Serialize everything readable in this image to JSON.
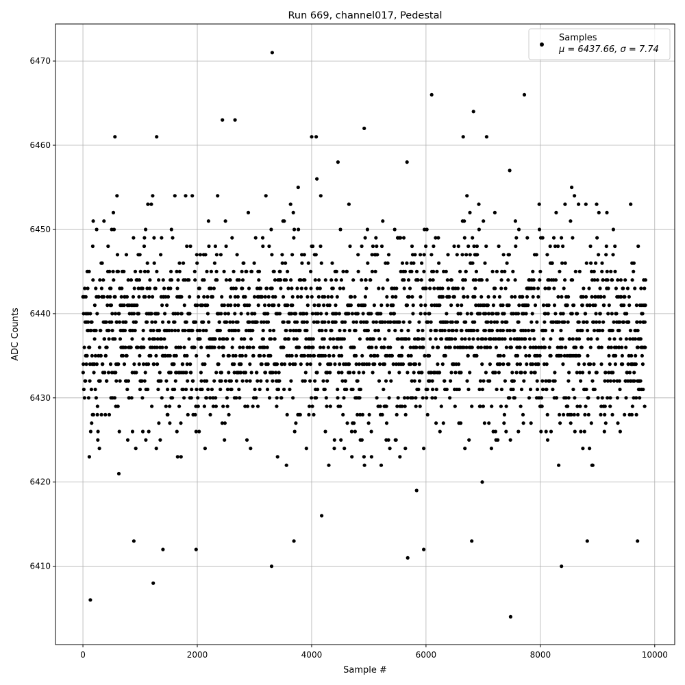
{
  "chart_data": {
    "type": "scatter",
    "title": "Run 669, channel017, Pedestal",
    "xlabel": "Sample #",
    "ylabel": "ADC Counts",
    "xlim": [
      -480,
      10350
    ],
    "ylim": [
      6400.7,
      6474.4
    ],
    "xticks": [
      0,
      2000,
      4000,
      6000,
      8000,
      10000
    ],
    "yticks": [
      6410,
      6420,
      6430,
      6440,
      6450,
      6460,
      6470
    ],
    "grid": true,
    "legend": {
      "placement": "top-right",
      "entries": [
        {
          "label": "Samples",
          "stats": "μ = 6437.66, σ = 7.74"
        }
      ]
    },
    "series": [
      {
        "name": "Samples",
        "color": "#000000",
        "marker": "circle",
        "mean": 6437.66,
        "sigma": 7.74,
        "x_range": [
          0,
          9840
        ],
        "notable_points": [
          {
            "x": 130,
            "y": 6406
          },
          {
            "x": 1230,
            "y": 6408
          },
          {
            "x": 3300,
            "y": 6410
          },
          {
            "x": 7480,
            "y": 6404
          },
          {
            "x": 8370,
            "y": 6410
          },
          {
            "x": 3310,
            "y": 6471
          },
          {
            "x": 6100,
            "y": 6466
          },
          {
            "x": 7720,
            "y": 6466
          },
          {
            "x": 6830,
            "y": 6464
          },
          {
            "x": 2440,
            "y": 6463
          },
          {
            "x": 2660,
            "y": 6463
          },
          {
            "x": 4920,
            "y": 6462
          },
          {
            "x": 560,
            "y": 6461
          },
          {
            "x": 1290,
            "y": 6461
          },
          {
            "x": 4000,
            "y": 6461
          },
          {
            "x": 4080,
            "y": 6461
          },
          {
            "x": 6650,
            "y": 6461
          },
          {
            "x": 7060,
            "y": 6461
          },
          {
            "x": 5960,
            "y": 6412
          },
          {
            "x": 1980,
            "y": 6412
          },
          {
            "x": 1400,
            "y": 6412
          },
          {
            "x": 5680,
            "y": 6411
          },
          {
            "x": 890,
            "y": 6413
          },
          {
            "x": 3690,
            "y": 6413
          },
          {
            "x": 6800,
            "y": 6413
          },
          {
            "x": 8820,
            "y": 6413
          },
          {
            "x": 9700,
            "y": 6413
          }
        ]
      }
    ]
  }
}
